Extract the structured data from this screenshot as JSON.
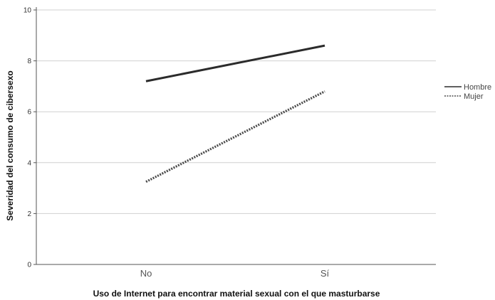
{
  "chart_data": {
    "type": "line",
    "categories": [
      "No",
      "Sí"
    ],
    "series": [
      {
        "name": "Hombre",
        "values": [
          7.2,
          8.6
        ],
        "style": "solid",
        "color": "#2b2b2b"
      },
      {
        "name": "Mujer",
        "values": [
          3.25,
          6.8
        ],
        "style": "dotted",
        "color": "#4a4a4a"
      }
    ],
    "xlabel": "Uso de Internet para encontrar material sexual con el que masturbarse",
    "ylabel": "Severidad del consumo de cibersexo",
    "ylim": [
      0,
      10
    ],
    "yticks": [
      "0",
      "2",
      "4",
      "6",
      "8",
      "10"
    ],
    "grid": true,
    "legend": "right"
  }
}
